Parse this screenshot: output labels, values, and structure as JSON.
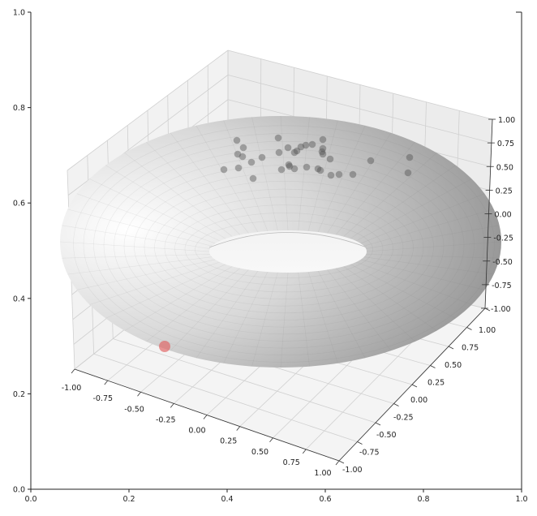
{
  "chart_data": {
    "type": "scatter",
    "projection": "3d",
    "surface": "torus",
    "surface_color": "#9a9a9a",
    "point_color": "#555555",
    "highlight_point_color": "#e06060",
    "grid": true,
    "axes2d": {
      "xlim": [
        0.0,
        1.0
      ],
      "ylim": [
        0.0,
        1.0
      ],
      "xticks": [
        "0.0",
        "0.2",
        "0.4",
        "0.6",
        "0.8",
        "1.0"
      ],
      "yticks": [
        "0.0",
        "0.2",
        "0.4",
        "0.6",
        "0.8",
        "1.0"
      ]
    },
    "axes3d": {
      "xlim": [
        -1.0,
        1.0
      ],
      "ylim": [
        -1.0,
        1.0
      ],
      "zlim": [
        -1.0,
        1.0
      ],
      "xticks": [
        "-1.00",
        "-0.75",
        "-0.50",
        "-0.25",
        "0.00",
        "0.25",
        "0.50",
        "0.75",
        "1.00"
      ],
      "yticks": [
        "-1.00",
        "-0.75",
        "-0.50",
        "-0.25",
        "0.00",
        "0.25",
        "0.50",
        "0.75",
        "1.00"
      ],
      "zticks": [
        "-1.00",
        "-0.75",
        "-0.50",
        "-0.25",
        "0.00",
        "0.25",
        "0.50",
        "0.75",
        "1.00"
      ]
    }
  }
}
